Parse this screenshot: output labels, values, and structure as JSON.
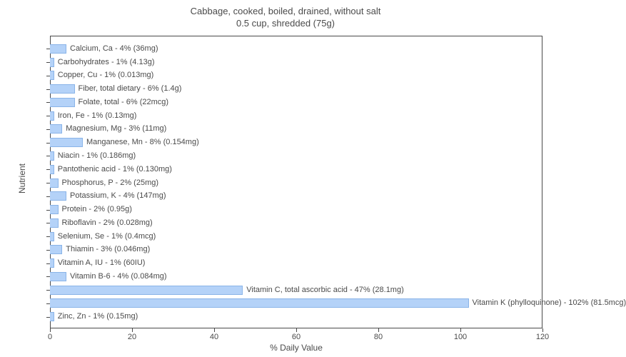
{
  "chart": {
    "type": "bar-horizontal",
    "title_line1": "Cabbage, cooked, boiled, drained, without salt",
    "title_line2": "0.5 cup, shredded (75g)",
    "title_fontsize": 13,
    "title_color": "#4a4a4a",
    "x_axis": {
      "label": "% Daily Value",
      "min": 0,
      "max": 120,
      "tick_step": 20,
      "ticks": [
        0,
        20,
        40,
        60,
        80,
        100,
        120
      ]
    },
    "y_axis": {
      "label": "Nutrient"
    },
    "bar_color": "#b4d2f8",
    "bar_border_color": "#8ab4e8",
    "background_color": "#ffffff",
    "axis_color": "#4a4a4a",
    "label_fontsize": 11,
    "data": [
      {
        "label": "Calcium, Ca - 4% (36mg)",
        "value": 4
      },
      {
        "label": "Carbohydrates - 1% (4.13g)",
        "value": 1
      },
      {
        "label": "Copper, Cu - 1% (0.013mg)",
        "value": 1
      },
      {
        "label": "Fiber, total dietary - 6% (1.4g)",
        "value": 6
      },
      {
        "label": "Folate, total - 6% (22mcg)",
        "value": 6
      },
      {
        "label": "Iron, Fe - 1% (0.13mg)",
        "value": 1
      },
      {
        "label": "Magnesium, Mg - 3% (11mg)",
        "value": 3
      },
      {
        "label": "Manganese, Mn - 8% (0.154mg)",
        "value": 8
      },
      {
        "label": "Niacin - 1% (0.186mg)",
        "value": 1
      },
      {
        "label": "Pantothenic acid - 1% (0.130mg)",
        "value": 1
      },
      {
        "label": "Phosphorus, P - 2% (25mg)",
        "value": 2
      },
      {
        "label": "Potassium, K - 4% (147mg)",
        "value": 4
      },
      {
        "label": "Protein - 2% (0.95g)",
        "value": 2
      },
      {
        "label": "Riboflavin - 2% (0.028mg)",
        "value": 2
      },
      {
        "label": "Selenium, Se - 1% (0.4mcg)",
        "value": 1
      },
      {
        "label": "Thiamin - 3% (0.046mg)",
        "value": 3
      },
      {
        "label": "Vitamin A, IU - 1% (60IU)",
        "value": 1
      },
      {
        "label": "Vitamin B-6 - 4% (0.084mg)",
        "value": 4
      },
      {
        "label": "Vitamin C, total ascorbic acid - 47% (28.1mg)",
        "value": 47
      },
      {
        "label": "Vitamin K (phylloquinone) - 102% (81.5mcg)",
        "value": 102
      },
      {
        "label": "Zinc, Zn - 1% (0.15mg)",
        "value": 1
      }
    ]
  }
}
